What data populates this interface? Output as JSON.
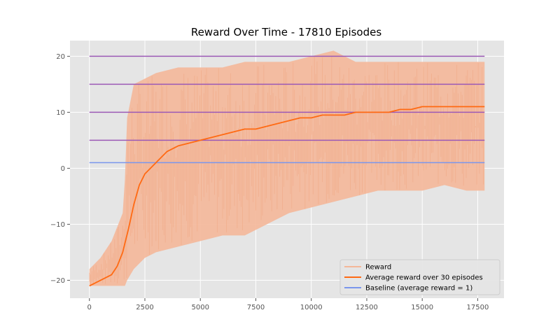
{
  "chart_data": {
    "type": "line",
    "title": "Reward Over Time - 17810 Episodes",
    "xlabel": "",
    "ylabel": "",
    "xlim": [
      -875,
      18685
    ],
    "ylim": [
      -23.2,
      22.8
    ],
    "x_ticks": [
      0,
      2500,
      5000,
      7500,
      10000,
      12500,
      15000,
      17500
    ],
    "y_ticks": [
      -20,
      -10,
      0,
      10,
      20
    ],
    "x_tick_labels": [
      "0",
      "2500",
      "5000",
      "7500",
      "10000",
      "12500",
      "15000",
      "17500"
    ],
    "y_tick_labels": [
      "−20",
      "−10",
      "0",
      "10",
      "20"
    ],
    "grid": true,
    "legend_position": "lower-right",
    "series": [
      {
        "name": "Reward",
        "color": "#f4b799",
        "x": [
          0,
          500,
          1000,
          1500,
          1600,
          1700,
          2000,
          2500,
          3000,
          4000,
          5000,
          6000,
          7000,
          7500,
          8000,
          9000,
          10000,
          11000,
          12000,
          13000,
          14000,
          15000,
          16000,
          17000,
          17810
        ],
        "upper": [
          -18,
          -16,
          -13,
          -8,
          -2,
          9,
          15,
          16,
          17,
          18,
          18,
          18,
          19,
          19,
          19,
          19,
          20,
          21,
          19,
          19,
          19,
          19,
          19,
          19,
          19
        ],
        "lower": [
          -21,
          -21,
          -21,
          -21,
          -21,
          -20,
          -18,
          -16,
          -15,
          -14,
          -13,
          -12,
          -12,
          -11,
          -10,
          -8,
          -7,
          -6,
          -5,
          -4,
          -4,
          -4,
          -3,
          -4,
          -4
        ]
      },
      {
        "name": "Average reward over 30 episodes",
        "color": "#ff6a13",
        "x": [
          0,
          250,
          500,
          750,
          1000,
          1250,
          1500,
          1750,
          2000,
          2250,
          2500,
          3000,
          3500,
          4000,
          4500,
          5000,
          5500,
          6000,
          6500,
          7000,
          7500,
          8000,
          8500,
          9000,
          9500,
          10000,
          10500,
          11000,
          11500,
          12000,
          12500,
          13000,
          13500,
          14000,
          14500,
          15000,
          15500,
          16000,
          16500,
          17000,
          17500,
          17810
        ],
        "y": [
          -21,
          -20.5,
          -20,
          -19.5,
          -19,
          -17.5,
          -15,
          -11,
          -6.5,
          -3,
          -1,
          1,
          3,
          4,
          4.5,
          5,
          5.5,
          6,
          6.5,
          7,
          7,
          7.5,
          8,
          8.5,
          9,
          9,
          9.5,
          9.5,
          9.5,
          10,
          10,
          10,
          10,
          10.5,
          10.5,
          11,
          11,
          11,
          11,
          11,
          11,
          11
        ]
      },
      {
        "name": "Baseline (average reward = 1)",
        "color": "#7a96ec",
        "x": [
          0,
          17810
        ],
        "y": [
          1,
          1
        ]
      }
    ],
    "reference_lines": [
      {
        "y": 5,
        "x": [
          0,
          17810
        ],
        "color": "#9b59b6"
      },
      {
        "y": 10,
        "x": [
          0,
          17810
        ],
        "color": "#9b59b6"
      },
      {
        "y": 15,
        "x": [
          0,
          17810
        ],
        "color": "#9b59b6"
      },
      {
        "y": 20,
        "x": [
          0,
          17810
        ],
        "color": "#9b59b6"
      }
    ]
  }
}
